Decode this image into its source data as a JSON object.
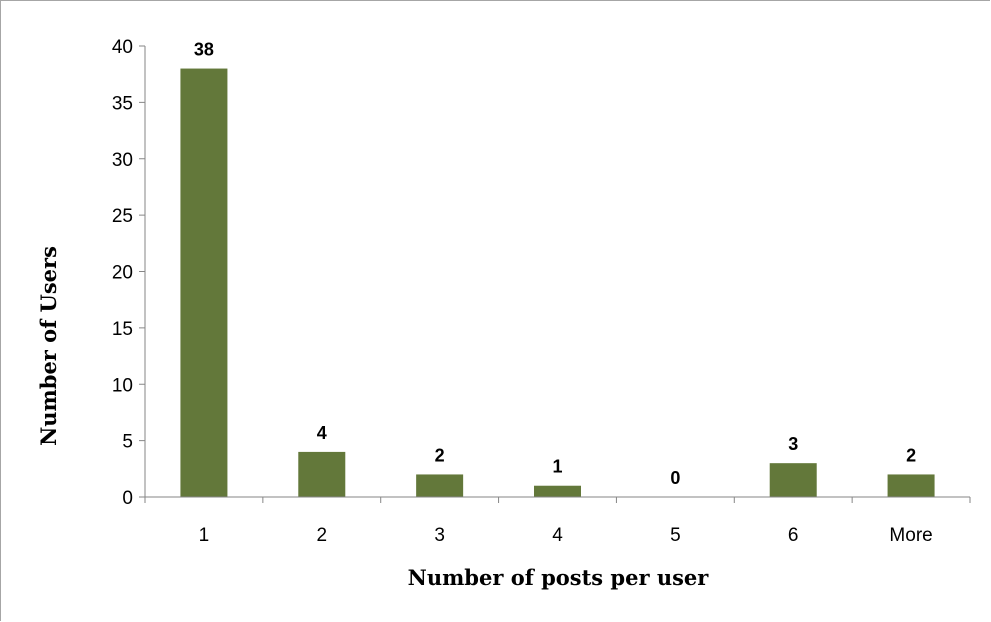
{
  "chart_data": {
    "type": "bar",
    "categories": [
      "1",
      "2",
      "3",
      "4",
      "5",
      "6",
      "More"
    ],
    "values": [
      38,
      4,
      2,
      1,
      0,
      3,
      2
    ],
    "data_labels": [
      "38",
      "4",
      "2",
      "1",
      "0",
      "3",
      "2"
    ],
    "xlabel": "Number of posts per user",
    "ylabel": "Number of Users",
    "ylim": [
      0,
      40
    ],
    "yticks": [
      "0",
      "5",
      "10",
      "15",
      "20",
      "25",
      "30",
      "35",
      "40"
    ],
    "ytick_values": [
      0,
      5,
      10,
      15,
      20,
      25,
      30,
      35,
      40
    ],
    "grid": false,
    "legend": "none",
    "bar_color": "#63783a"
  }
}
